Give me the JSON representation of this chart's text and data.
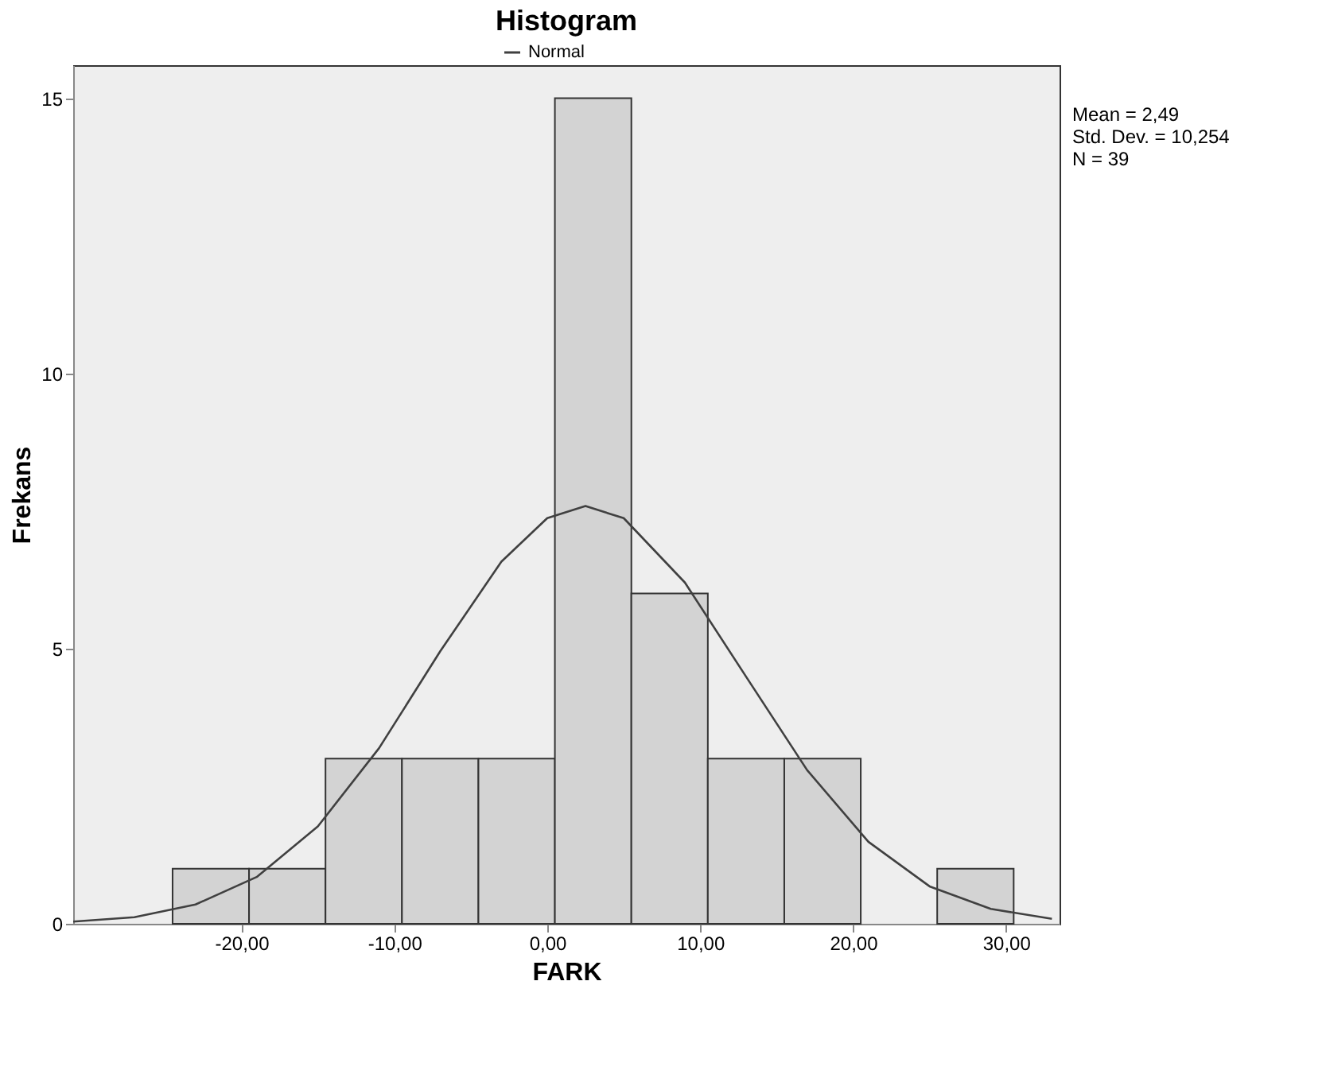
{
  "chart_data": {
    "type": "histogram",
    "title": "Histogram",
    "xlabel": "FARK",
    "ylabel": "Frekans",
    "bins": [
      -24.5,
      -19.5,
      -14.5,
      -9.5,
      -4.5,
      0.5,
      5.5,
      10.5,
      15.5,
      20.5,
      25.5,
      30.5
    ],
    "values": [
      1,
      1,
      3,
      3,
      3,
      15,
      6,
      3,
      3,
      0,
      1
    ],
    "color": "#d3d3d3",
    "series": [
      {
        "name": "Normal",
        "type": "line",
        "color": "#404040",
        "x": [
          -31,
          -27,
          -23,
          -19,
          -15,
          -11,
          -7,
          -3,
          0,
          2.5,
          5,
          9,
          13,
          17,
          21,
          25,
          29,
          33
        ],
        "values": [
          0.04,
          0.12,
          0.35,
          0.85,
          1.77,
          3.19,
          4.95,
          6.58,
          7.37,
          7.59,
          7.37,
          6.2,
          4.49,
          2.79,
          1.49,
          0.68,
          0.27,
          0.09
        ]
      }
    ],
    "xlim": [
      -31,
      33.5
    ],
    "ylim": [
      0,
      15.6
    ],
    "xticks": [
      {
        "value": -20,
        "label": "-20,00"
      },
      {
        "value": -10,
        "label": "-10,00"
      },
      {
        "value": 0,
        "label": "0,00"
      },
      {
        "value": 10,
        "label": "10,00"
      },
      {
        "value": 20,
        "label": "20,00"
      },
      {
        "value": 30,
        "label": "30,00"
      }
    ],
    "yticks": [
      0,
      5,
      10,
      15
    ],
    "grid": false,
    "legend": "top",
    "annotations": [
      "Mean = 2,49",
      "Std. Dev. = 10,254",
      "N = 39"
    ]
  }
}
